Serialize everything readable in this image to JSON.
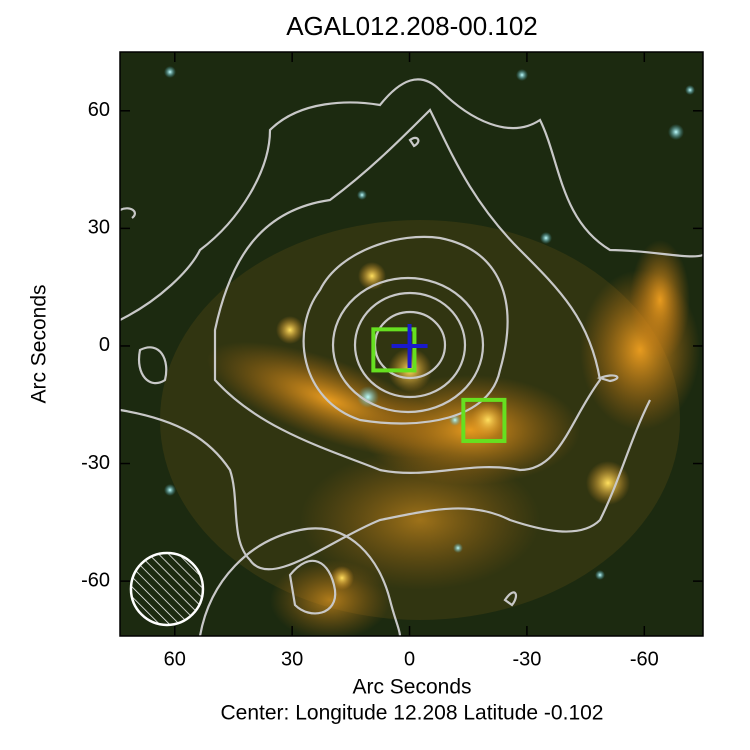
{
  "chart_data": {
    "type": "image",
    "title": "AGAL012.208-00.102",
    "xlabel": "Arc Seconds",
    "ylabel": "Arc Seconds",
    "caption": "Center:  Longitude 12.208 Latitude -0.102",
    "xlim": [
      74,
      -75
    ],
    "ylim": [
      -74,
      75
    ],
    "xticks": [
      60,
      30,
      0,
      -30,
      -60
    ],
    "yticks": [
      -60,
      -30,
      0,
      30,
      60
    ],
    "squares": {
      "color": "#66e020",
      "x": [
        4,
        -19
      ],
      "y": [
        -1,
        -19
      ],
      "size": 10.5
    },
    "cross": {
      "color": "#1a1acc",
      "x": 0,
      "y": 0
    },
    "beam": {
      "x": 62,
      "y": -62,
      "radius": 9.2
    }
  }
}
